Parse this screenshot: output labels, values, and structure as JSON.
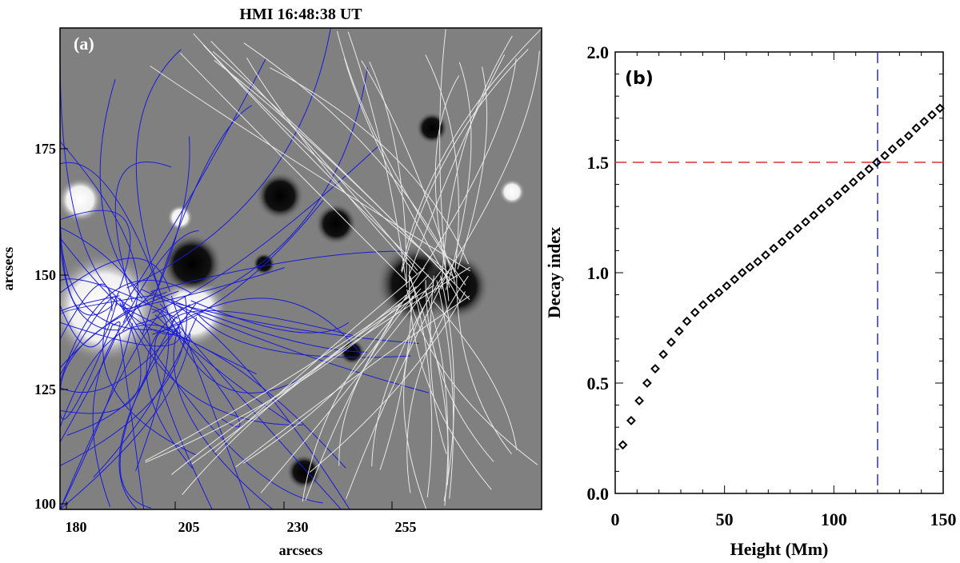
{
  "chart_data": [
    {
      "type": "image",
      "title": "HMI 16:48:38 UT",
      "panel_label": "(a)",
      "xlabel": "arcsecs",
      "ylabel": "arcsecs",
      "xticks": [
        "180",
        "205",
        "230",
        "255"
      ],
      "yticks": [
        "100",
        "125",
        "150",
        "175"
      ],
      "xlim": [
        180,
        240
      ],
      "ylim": [
        100,
        200
      ],
      "colors": {
        "field_lines_closed": "#1a1adc",
        "field_lines_open": "#e8e8e8",
        "background": "#808080"
      }
    },
    {
      "type": "scatter",
      "panel_label": "(b)",
      "xlabel": "Height (Mm)",
      "ylabel": "Decay index",
      "xlim": [
        0,
        150
      ],
      "ylim": [
        0,
        2.0
      ],
      "xticks": [
        "0",
        "50",
        "100",
        "150"
      ],
      "yticks": [
        "0.0",
        "0.5",
        "1.0",
        "1.5",
        "2.0"
      ],
      "marker": "diamond",
      "x": [
        3.5,
        7.3,
        11.0,
        14.6,
        18.3,
        22.0,
        25.6,
        29.2,
        32.8,
        36.5,
        40.2,
        43.8,
        47.4,
        51.0,
        54.6,
        58.1,
        61.6,
        65.2,
        68.8,
        72.5,
        76.3,
        79.9,
        83.5,
        87.1,
        90.8,
        94.3,
        98.0,
        101.7,
        105.2,
        108.9,
        112.4,
        116.1,
        119.6,
        123.3,
        126.8,
        130.5,
        134.2,
        137.7,
        141.3,
        144.9,
        148.5
      ],
      "y": [
        0.22,
        0.33,
        0.42,
        0.5,
        0.565,
        0.63,
        0.685,
        0.735,
        0.78,
        0.82,
        0.855,
        0.885,
        0.91,
        0.94,
        0.97,
        1.0,
        1.025,
        1.05,
        1.08,
        1.11,
        1.14,
        1.17,
        1.2,
        1.23,
        1.26,
        1.29,
        1.32,
        1.35,
        1.38,
        1.41,
        1.44,
        1.47,
        1.5,
        1.53,
        1.56,
        1.59,
        1.62,
        1.655,
        1.685,
        1.715,
        1.745
      ],
      "hline": {
        "y": 1.5,
        "color": "#e03030",
        "style": "dashed"
      },
      "vline": {
        "x": 120,
        "color": "#2a2ad0",
        "style": "dashed"
      }
    }
  ]
}
